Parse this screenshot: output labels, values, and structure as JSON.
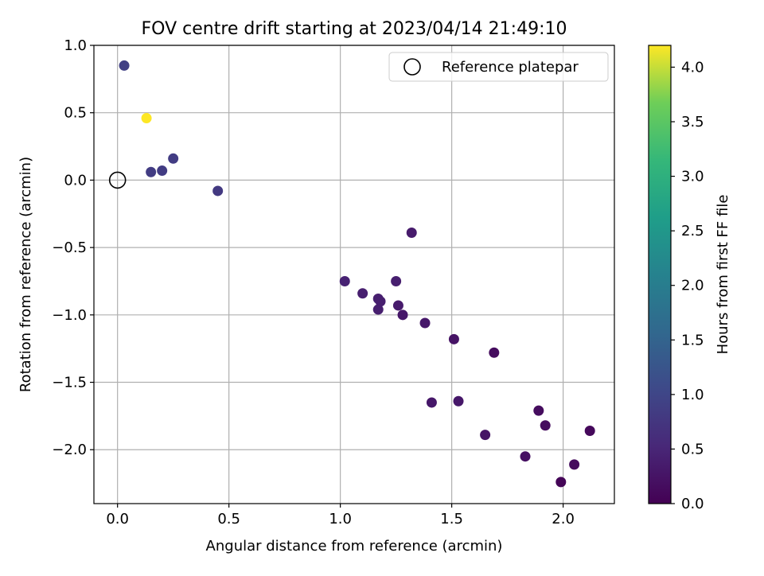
{
  "chart_data": {
    "type": "scatter",
    "title": "FOV centre drift starting at 2023/04/14 21:49:10",
    "xlabel": "Angular distance from reference (arcmin)",
    "ylabel": "Rotation from reference (arcmin)",
    "xlim": [
      -0.106,
      2.23
    ],
    "ylim": [
      -2.4,
      1.0
    ],
    "x_ticks": [
      0.0,
      0.5,
      1.0,
      1.5,
      2.0
    ],
    "x_tick_labels": [
      "0.0",
      "0.5",
      "1.0",
      "1.5",
      "2.0"
    ],
    "y_ticks": [
      1.0,
      0.5,
      0.0,
      -0.5,
      -1.0,
      -1.5,
      -2.0
    ],
    "y_tick_labels": [
      "1.0",
      "0.5",
      "0.0",
      "−0.5",
      "−1.0",
      "−1.5",
      "−2.0"
    ],
    "grid": true,
    "legend": {
      "placement": "top-right",
      "entries": [
        "Reference platepar"
      ]
    },
    "reference_point": {
      "x": 0.0,
      "y": 0.0
    },
    "colorbar": {
      "label": "Hours from first FF file",
      "range": [
        0.0,
        4.2
      ],
      "ticks": [
        0.0,
        0.5,
        1.0,
        1.5,
        2.0,
        2.5,
        3.0,
        3.5,
        4.0
      ],
      "tick_labels": [
        "0.0",
        "0.5",
        "1.0",
        "1.5",
        "2.0",
        "2.5",
        "3.0",
        "3.5",
        "4.0"
      ],
      "colormap": "viridis"
    },
    "points": [
      {
        "x": 0.03,
        "y": 0.85,
        "hours": 0.9
      },
      {
        "x": 0.13,
        "y": 0.46,
        "hours": 4.2
      },
      {
        "x": 0.15,
        "y": 0.06,
        "hours": 0.85
      },
      {
        "x": 0.2,
        "y": 0.07,
        "hours": 0.85
      },
      {
        "x": 0.25,
        "y": 0.16,
        "hours": 0.85
      },
      {
        "x": 0.45,
        "y": -0.08,
        "hours": 0.8
      },
      {
        "x": 1.02,
        "y": -0.75,
        "hours": 0.45
      },
      {
        "x": 1.1,
        "y": -0.84,
        "hours": 0.4
      },
      {
        "x": 1.17,
        "y": -0.88,
        "hours": 0.4
      },
      {
        "x": 1.17,
        "y": -0.96,
        "hours": 0.4
      },
      {
        "x": 1.18,
        "y": -0.9,
        "hours": 0.4
      },
      {
        "x": 1.25,
        "y": -0.75,
        "hours": 0.4
      },
      {
        "x": 1.26,
        "y": -0.93,
        "hours": 0.35
      },
      {
        "x": 1.28,
        "y": -1.0,
        "hours": 0.3
      },
      {
        "x": 1.32,
        "y": -0.39,
        "hours": 0.35
      },
      {
        "x": 1.38,
        "y": -1.06,
        "hours": 0.3
      },
      {
        "x": 1.41,
        "y": -1.65,
        "hours": 0.3
      },
      {
        "x": 1.51,
        "y": -1.18,
        "hours": 0.25
      },
      {
        "x": 1.53,
        "y": -1.64,
        "hours": 0.3
      },
      {
        "x": 1.65,
        "y": -1.89,
        "hours": 0.25
      },
      {
        "x": 1.69,
        "y": -1.28,
        "hours": 0.15
      },
      {
        "x": 1.83,
        "y": -2.05,
        "hours": 0.2
      },
      {
        "x": 1.89,
        "y": -1.71,
        "hours": 0.15
      },
      {
        "x": 1.92,
        "y": -1.82,
        "hours": 0.15
      },
      {
        "x": 1.99,
        "y": -2.24,
        "hours": 0.05
      },
      {
        "x": 2.05,
        "y": -2.11,
        "hours": 0.15
      },
      {
        "x": 2.12,
        "y": -1.86,
        "hours": 0.1
      }
    ]
  }
}
